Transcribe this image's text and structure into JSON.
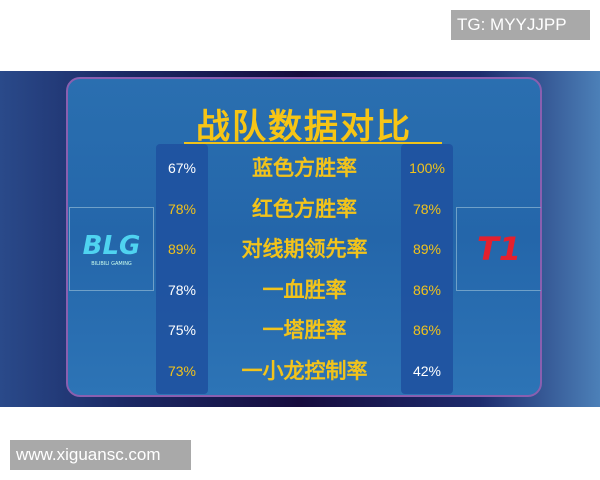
{
  "watermarks": {
    "top": "TG: MYYJJPP",
    "bottom": "www.xiguansc.com"
  },
  "title": "战队数据对比",
  "teams": {
    "left": {
      "logo": "BLG",
      "logo_sub": "BILIBILI GAMING"
    },
    "right": {
      "logo": "T1"
    }
  },
  "colors": {
    "highlight": "#f2c31b",
    "normal": "#ffffff"
  },
  "rows": [
    {
      "label": "蓝色方胜率",
      "left": "67%",
      "right": "100%",
      "left_color": "#ffffff",
      "right_color": "#f2c31b"
    },
    {
      "label": "红色方胜率",
      "left": "78%",
      "right": "78%",
      "left_color": "#f2c31b",
      "right_color": "#f2c31b"
    },
    {
      "label": "对线期领先率",
      "left": "89%",
      "right": "89%",
      "left_color": "#f2c31b",
      "right_color": "#f2c31b"
    },
    {
      "label": "一血胜率",
      "left": "78%",
      "right": "86%",
      "left_color": "#ffffff",
      "right_color": "#f2c31b"
    },
    {
      "label": "一塔胜率",
      "left": "75%",
      "right": "86%",
      "left_color": "#ffffff",
      "right_color": "#f2c31b"
    },
    {
      "label": "一小龙控制率",
      "left": "73%",
      "right": "42%",
      "left_color": "#f2c31b",
      "right_color": "#ffffff"
    }
  ]
}
